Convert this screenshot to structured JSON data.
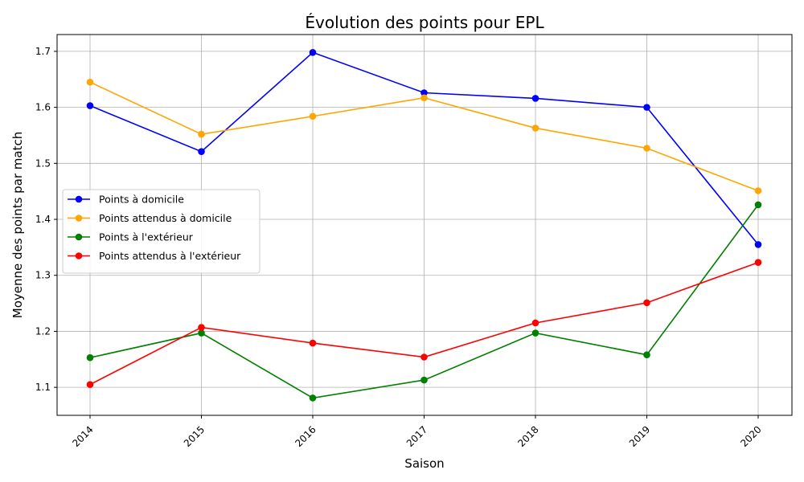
{
  "chart_data": {
    "type": "line",
    "title": "Évolution des points pour EPL",
    "xlabel": "Saison",
    "ylabel": "Moyenne des points par match",
    "categories": [
      "2014",
      "2015",
      "2016",
      "2017",
      "2018",
      "2019",
      "2020"
    ],
    "y_ticks": [
      1.1,
      1.2,
      1.3,
      1.4,
      1.5,
      1.6,
      1.7
    ],
    "ylim": [
      1.05,
      1.73
    ],
    "grid": true,
    "legend_position": "center-left",
    "series": [
      {
        "name": "Points à domicile",
        "color": "#0000ff",
        "values": [
          1.603,
          1.521,
          1.698,
          1.626,
          1.616,
          1.6,
          1.355
        ]
      },
      {
        "name": "Points attendus à domicile",
        "color": "#ffa500",
        "values": [
          1.645,
          1.552,
          1.584,
          1.617,
          1.563,
          1.527,
          1.451
        ]
      },
      {
        "name": "Points à l'extérieur",
        "color": "#008000",
        "values": [
          1.153,
          1.197,
          1.081,
          1.113,
          1.197,
          1.158,
          1.426
        ]
      },
      {
        "name": "Points attendus à l'extérieur",
        "color": "#ff0000",
        "values": [
          1.105,
          1.207,
          1.179,
          1.154,
          1.215,
          1.251,
          1.323
        ]
      }
    ]
  }
}
